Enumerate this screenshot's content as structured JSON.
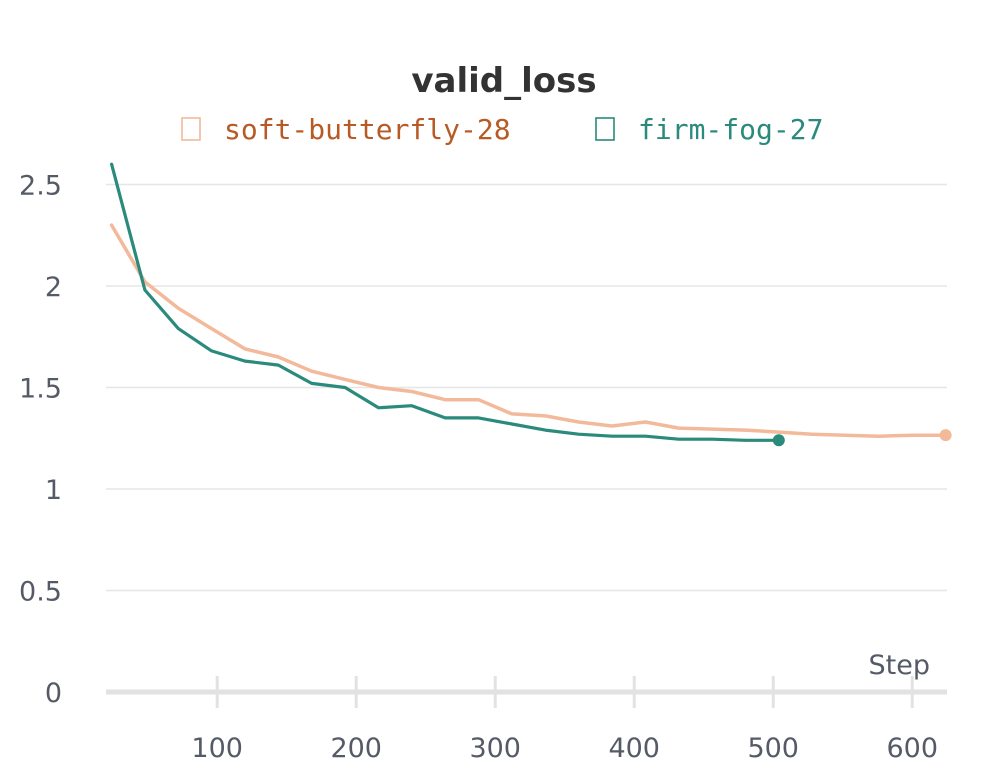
{
  "chart_data": {
    "type": "line",
    "title": "valid_loss",
    "xlabel": "Step",
    "ylabel": "",
    "xlim": [
      20,
      625
    ],
    "ylim": [
      0,
      2.65
    ],
    "xticks": [
      100,
      200,
      300,
      400,
      500,
      600
    ],
    "yticks": [
      0,
      0.5,
      1,
      1.5,
      2,
      2.5
    ],
    "xtick_labels": [
      "100",
      "200",
      "300",
      "400",
      "500",
      "600"
    ],
    "ytick_labels": [
      "0",
      "0.5",
      "1",
      "1.5",
      "2",
      "2.5"
    ],
    "grid": true,
    "legend_position": "top-center",
    "series": [
      {
        "name": "soft-butterfly-28",
        "color": "#f2b99b",
        "label_color": "#b85a25",
        "marker_at_last": true,
        "x": [
          24,
          48,
          72,
          96,
          120,
          144,
          168,
          192,
          216,
          240,
          264,
          288,
          312,
          336,
          360,
          384,
          408,
          432,
          456,
          480,
          504,
          528,
          552,
          576,
          600,
          624
        ],
        "y": [
          2.3,
          2.02,
          1.89,
          1.79,
          1.69,
          1.65,
          1.58,
          1.54,
          1.5,
          1.48,
          1.44,
          1.44,
          1.37,
          1.36,
          1.33,
          1.31,
          1.33,
          1.3,
          1.295,
          1.29,
          1.28,
          1.27,
          1.265,
          1.26,
          1.265,
          1.265
        ]
      },
      {
        "name": "firm-fog-27",
        "color": "#2a8a7c",
        "label_color": "#2a8a7c",
        "marker_at_last": true,
        "x": [
          24,
          48,
          72,
          96,
          120,
          144,
          168,
          192,
          216,
          240,
          264,
          288,
          312,
          336,
          360,
          384,
          408,
          432,
          456,
          480,
          504
        ],
        "y": [
          2.6,
          1.98,
          1.79,
          1.68,
          1.63,
          1.61,
          1.52,
          1.5,
          1.4,
          1.41,
          1.35,
          1.35,
          1.32,
          1.29,
          1.27,
          1.26,
          1.26,
          1.245,
          1.245,
          1.24,
          1.24
        ]
      }
    ]
  }
}
